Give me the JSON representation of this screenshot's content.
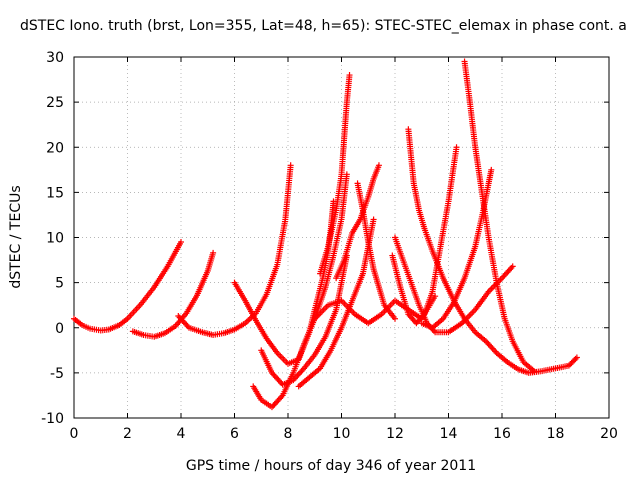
{
  "chart_data": {
    "type": "scatter",
    "title": "dSTEC Iono. truth (brst, Lon=355, Lat=48, h=65): STEC-STEC_elemax in phase cont. a",
    "xlabel": "GPS time / hours of day 346 of year 2011",
    "ylabel": "dSTEC  / TECUs",
    "xlim": [
      0,
      20
    ],
    "ylim": [
      -10,
      30
    ],
    "xticks": [
      0,
      2,
      4,
      6,
      8,
      10,
      12,
      14,
      16,
      18,
      20
    ],
    "yticks": [
      -10,
      -5,
      0,
      5,
      10,
      15,
      20,
      25,
      30
    ],
    "grid": true,
    "marker": "+",
    "color": "#ff0000",
    "series": [
      {
        "x": [
          0.0,
          0.3,
          0.6,
          1.0,
          1.3,
          1.7,
          2.0,
          2.5,
          3.0,
          3.5,
          4.0
        ],
        "y": [
          1.0,
          0.3,
          -0.1,
          -0.3,
          -0.2,
          0.3,
          1.0,
          2.6,
          4.5,
          6.8,
          9.5
        ]
      },
      {
        "x": [
          2.2,
          2.6,
          3.0,
          3.4,
          3.8,
          4.2,
          4.6,
          5.0,
          5.2
        ],
        "y": [
          -0.4,
          -0.8,
          -1.0,
          -0.6,
          0.2,
          1.6,
          3.6,
          6.3,
          8.3
        ]
      },
      {
        "x": [
          3.9,
          4.3,
          4.8,
          5.2,
          5.6,
          6.0,
          6.4,
          6.8,
          7.2,
          7.6,
          7.9,
          8.1
        ],
        "y": [
          1.3,
          0.0,
          -0.5,
          -0.8,
          -0.6,
          -0.2,
          0.5,
          1.6,
          3.7,
          7.0,
          12.0,
          18.0
        ]
      },
      {
        "x": [
          6.0,
          6.4,
          6.8,
          7.2,
          7.6,
          8.0,
          8.4,
          8.8,
          9.0,
          9.3,
          9.5,
          9.6,
          9.7
        ],
        "y": [
          5.0,
          3.0,
          0.8,
          -1.2,
          -2.8,
          -4.0,
          -3.5,
          -0.5,
          2.0,
          5.5,
          8.5,
          11.0,
          14.0
        ]
      },
      {
        "x": [
          6.7,
          7.0,
          7.4,
          7.8,
          8.2,
          8.6,
          9.0,
          9.4,
          9.7,
          10.0,
          10.2
        ],
        "y": [
          -6.5,
          -8.0,
          -8.8,
          -7.5,
          -5.0,
          -1.8,
          1.0,
          4.5,
          8.0,
          12.0,
          17.0
        ]
      },
      {
        "x": [
          7.0,
          7.4,
          7.8,
          8.2,
          8.6,
          9.0,
          9.4,
          9.8,
          10.0,
          10.2
        ],
        "y": [
          -2.5,
          -5.0,
          -6.3,
          -5.8,
          -4.5,
          -3.0,
          -1.0,
          2.0,
          5.0,
          8.0
        ]
      },
      {
        "x": [
          9.2,
          9.5,
          9.8,
          10.0,
          10.1,
          10.2,
          10.3
        ],
        "y": [
          6.0,
          9.0,
          13.0,
          17.0,
          21.0,
          25.0,
          28.0
        ]
      },
      {
        "x": [
          8.4,
          8.8,
          9.2,
          9.6,
          10.0,
          10.4,
          10.8,
          11.2
        ],
        "y": [
          -6.5,
          -5.5,
          -4.5,
          -2.5,
          0.0,
          3.0,
          6.0,
          12.0
        ]
      },
      {
        "x": [
          9.8,
          10.1,
          10.4,
          10.7,
          11.0,
          11.2,
          11.4
        ],
        "y": [
          5.5,
          7.5,
          10.5,
          12.0,
          14.5,
          16.5,
          18.0
        ]
      },
      {
        "x": [
          10.6,
          10.8,
          11.0,
          11.2,
          11.4,
          11.6,
          12.0
        ],
        "y": [
          16.0,
          13.0,
          9.5,
          6.5,
          4.5,
          2.5,
          1.0
        ]
      },
      {
        "x": [
          9.0,
          9.5,
          10.0,
          10.5,
          11.0,
          11.5,
          12.0,
          12.5,
          13.0,
          13.5
        ],
        "y": [
          1.0,
          2.5,
          3.0,
          1.5,
          0.5,
          1.5,
          3.0,
          2.0,
          1.0,
          3.5
        ]
      },
      {
        "x": [
          11.9,
          12.2,
          12.5,
          12.8,
          13.1,
          13.4,
          13.7,
          14.0,
          14.3
        ],
        "y": [
          8.0,
          4.5,
          1.5,
          0.5,
          1.5,
          4.0,
          9.0,
          14.0,
          20.0
        ]
      },
      {
        "x": [
          12.0,
          12.3,
          12.6,
          12.9,
          13.2,
          13.5,
          14.0,
          14.5,
          15.0,
          15.5,
          16.0,
          16.4
        ],
        "y": [
          10.0,
          7.5,
          5.0,
          2.5,
          0.5,
          -0.5,
          -0.5,
          0.5,
          2.0,
          4.0,
          5.5,
          6.8
        ]
      },
      {
        "x": [
          12.5,
          12.7,
          12.9,
          13.1,
          13.4,
          13.8,
          14.2,
          14.6,
          15.0,
          15.4,
          15.8,
          16.2,
          16.6,
          17.0,
          17.5,
          18.0,
          18.5,
          18.8
        ],
        "y": [
          22.0,
          16.0,
          13.0,
          11.0,
          8.5,
          5.5,
          3.0,
          1.0,
          -0.5,
          -1.5,
          -2.8,
          -3.8,
          -4.6,
          -5.0,
          -4.8,
          -4.5,
          -4.2,
          -3.3
        ]
      },
      {
        "x": [
          14.6,
          14.8,
          15.0,
          15.2,
          15.5,
          15.8,
          16.1,
          16.4,
          16.8,
          17.2
        ],
        "y": [
          29.5,
          25.0,
          20.0,
          16.0,
          10.0,
          5.0,
          1.0,
          -1.5,
          -3.8,
          -4.8
        ]
      },
      {
        "x": [
          13.0,
          13.4,
          13.8,
          14.2,
          14.6,
          15.0,
          15.3,
          15.5,
          15.6
        ],
        "y": [
          0.5,
          0.0,
          1.0,
          2.8,
          5.5,
          9.0,
          13.0,
          16.0,
          17.5
        ]
      }
    ]
  }
}
